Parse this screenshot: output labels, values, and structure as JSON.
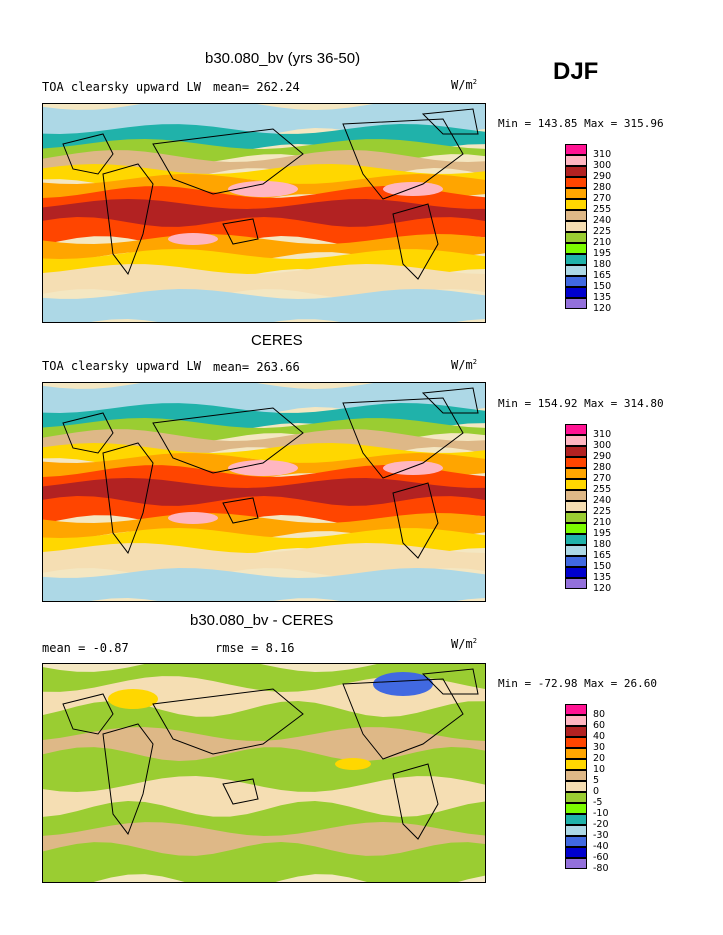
{
  "season": "DJF",
  "panels": [
    {
      "title": "b30.080_bv (yrs 36-50)",
      "variable": "TOA clearsky upward LW",
      "stat": "mean= 262.24",
      "stat2": "",
      "units": "W/m",
      "units_exp": "2",
      "minmax": "Min = 143.85 Max = 315.96",
      "levels": [
        "310",
        "300",
        "290",
        "280",
        "270",
        "255",
        "240",
        "225",
        "210",
        "195",
        "180",
        "165",
        "150",
        "135",
        "120"
      ]
    },
    {
      "title": "CERES",
      "variable": "TOA clearsky upward LW",
      "stat": "mean= 263.66",
      "stat2": "",
      "units": "W/m",
      "units_exp": "2",
      "minmax": "Min = 154.92 Max = 314.80",
      "levels": [
        "310",
        "300",
        "290",
        "280",
        "270",
        "255",
        "240",
        "225",
        "210",
        "195",
        "180",
        "165",
        "150",
        "135",
        "120"
      ]
    },
    {
      "title": "b30.080_bv - CERES",
      "variable": "",
      "stat": "mean =   -0.87",
      "stat2": "rmse =    8.16",
      "units": "W/m",
      "units_exp": "2",
      "minmax": "Min = -72.98 Max =  26.60",
      "levels": [
        "80",
        "60",
        "40",
        "30",
        "20",
        "10",
        "5",
        "0",
        "-5",
        "-10",
        "-20",
        "-30",
        "-40",
        "-60",
        "-80"
      ]
    }
  ],
  "colors": [
    "#ff1493",
    "#ffb6c1",
    "#b22222",
    "#ff4500",
    "#ffa500",
    "#ffd700",
    "#deb887",
    "#f5deb3",
    "#9acd32",
    "#7cfc00",
    "#20b2aa",
    "#add8e6",
    "#4169e1",
    "#0000cd",
    "#9370db"
  ]
}
